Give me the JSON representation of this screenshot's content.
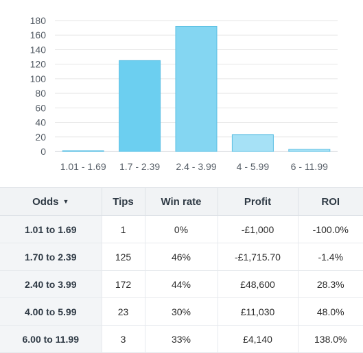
{
  "chart_data": {
    "type": "bar",
    "categories": [
      "1.01 - 1.69",
      "1.7 - 2.39",
      "2.4 - 3.99",
      "4 - 5.99",
      "6 - 11.99"
    ],
    "values": [
      1,
      125,
      172,
      23,
      3
    ],
    "ylim": [
      0,
      180
    ],
    "yticks": [
      0,
      20,
      40,
      60,
      80,
      100,
      120,
      140,
      160,
      180
    ],
    "grid": true,
    "colors": [
      "#6ccff0",
      "#6ccff0",
      "#84d6f2",
      "#a6e1f6",
      "#a6e1f6"
    ]
  },
  "table": {
    "headers": {
      "odds": "Odds",
      "tips": "Tips",
      "win_rate": "Win rate",
      "profit": "Profit",
      "roi": "ROI"
    },
    "sort_icon": "caret-down-icon",
    "rows": [
      {
        "odds": "1.01 to 1.69",
        "tips": "1",
        "win_rate": "0%",
        "profit": "-£1,000",
        "roi": "-100.0%"
      },
      {
        "odds": "1.70 to 2.39",
        "tips": "125",
        "win_rate": "46%",
        "profit": "-£1,715.70",
        "roi": "-1.4%"
      },
      {
        "odds": "2.40 to 3.99",
        "tips": "172",
        "win_rate": "44%",
        "profit": "£48,600",
        "roi": "28.3%"
      },
      {
        "odds": "4.00 to 5.99",
        "tips": "23",
        "win_rate": "30%",
        "profit": "£11,030",
        "roi": "48.0%"
      },
      {
        "odds": "6.00 to 11.99",
        "tips": "3",
        "win_rate": "33%",
        "profit": "£4,140",
        "roi": "138.0%"
      }
    ]
  }
}
